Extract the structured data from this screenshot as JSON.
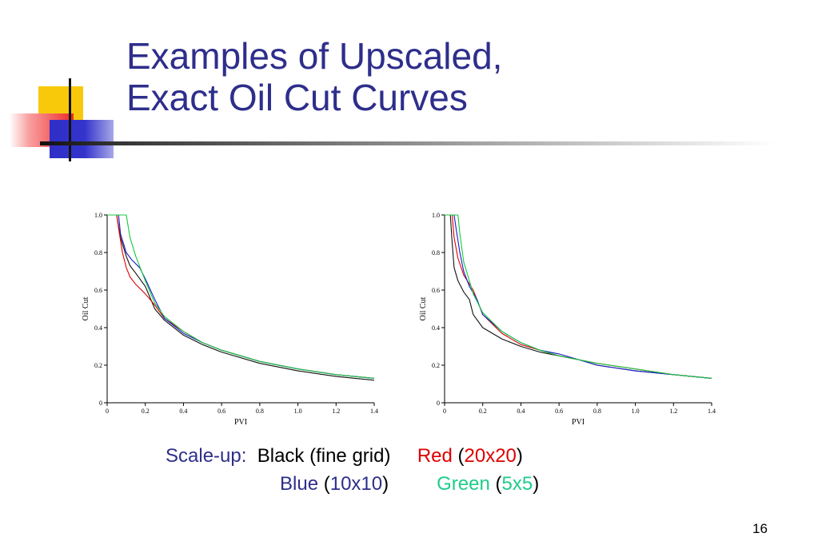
{
  "slide": {
    "title_line1": "Examples of Upscaled,",
    "title_line2": "Exact Oil Cut Curves",
    "page_number": "16"
  },
  "legend": {
    "prefix": "Scale-up:",
    "black_label": "Black (fine grid)",
    "red_label": "Red",
    "red_open": "(",
    "red_grid": "20x20",
    "red_close": ")",
    "blue_label": "Blue",
    "blue_open": "(",
    "blue_grid": "10x10",
    "blue_close": ")",
    "green_label": "Green",
    "green_open": "(",
    "green_grid": "5x5",
    "green_close": ")"
  },
  "colors": {
    "title": "#2e2e8c",
    "black_series": "#111111",
    "red_series": "#e00000",
    "blue_series": "#1a1acc",
    "green_series": "#16c840"
  },
  "chart_data": [
    {
      "type": "line",
      "xlabel": "PVI",
      "ylabel": "Oil Cut",
      "xlim": [
        0,
        1.4
      ],
      "ylim": [
        0,
        1.0
      ],
      "xticks": [
        "0",
        "0.2",
        "0.4",
        "0.6",
        "0.8",
        "1.0",
        "1.2",
        "1.4"
      ],
      "yticks": [
        "0",
        "0.2",
        "0.4",
        "0.6",
        "0.8",
        "1.0"
      ],
      "grid": false,
      "series": [
        {
          "color": "#111111",
          "x": [
            0,
            0.05,
            0.07,
            0.1,
            0.12,
            0.15,
            0.2,
            0.25,
            0.3,
            0.4,
            0.5,
            0.6,
            0.8,
            1.0,
            1.2,
            1.4
          ],
          "y": [
            1.0,
            1.0,
            0.88,
            0.78,
            0.73,
            0.69,
            0.62,
            0.5,
            0.44,
            0.36,
            0.31,
            0.27,
            0.21,
            0.17,
            0.14,
            0.12
          ]
        },
        {
          "color": "#e00000",
          "x": [
            0,
            0.05,
            0.06,
            0.08,
            0.1,
            0.12,
            0.15,
            0.2,
            0.25,
            0.3,
            0.4,
            0.5,
            0.6,
            0.8,
            1.0,
            1.2,
            1.4
          ],
          "y": [
            1.0,
            1.0,
            0.93,
            0.8,
            0.72,
            0.67,
            0.63,
            0.58,
            0.52,
            0.45,
            0.38,
            0.32,
            0.28,
            0.22,
            0.18,
            0.15,
            0.13
          ]
        },
        {
          "color": "#1a1acc",
          "x": [
            0,
            0.06,
            0.07,
            0.1,
            0.13,
            0.17,
            0.2,
            0.25,
            0.3,
            0.4,
            0.5,
            0.6,
            0.8,
            1.0,
            1.2,
            1.4
          ],
          "y": [
            1.0,
            1.0,
            0.9,
            0.8,
            0.76,
            0.72,
            0.66,
            0.55,
            0.45,
            0.37,
            0.32,
            0.28,
            0.22,
            0.18,
            0.15,
            0.13
          ]
        },
        {
          "color": "#16c840",
          "x": [
            0,
            0.1,
            0.12,
            0.15,
            0.2,
            0.25,
            0.3,
            0.4,
            0.5,
            0.6,
            0.8,
            1.0,
            1.2,
            1.4
          ],
          "y": [
            1.0,
            1.0,
            0.88,
            0.78,
            0.65,
            0.53,
            0.46,
            0.38,
            0.32,
            0.28,
            0.22,
            0.18,
            0.15,
            0.13
          ]
        }
      ]
    },
    {
      "type": "line",
      "xlabel": "PVI",
      "ylabel": "Oil Cut",
      "xlim": [
        0,
        1.4
      ],
      "ylim": [
        0,
        1.0
      ],
      "xticks": [
        "0",
        "0.2",
        "0.4",
        "0.6",
        "0.8",
        "1.0",
        "1.2",
        "1.4"
      ],
      "yticks": [
        "0",
        "0.2",
        "0.4",
        "0.6",
        "0.8",
        "1.0"
      ],
      "grid": false,
      "series": [
        {
          "color": "#111111",
          "x": [
            0,
            0.03,
            0.04,
            0.05,
            0.07,
            0.1,
            0.13,
            0.15,
            0.2,
            0.3,
            0.4,
            0.5,
            0.6,
            0.7,
            0.8,
            1.0,
            1.2,
            1.4
          ],
          "y": [
            1.0,
            1.0,
            0.85,
            0.72,
            0.65,
            0.59,
            0.55,
            0.47,
            0.4,
            0.34,
            0.3,
            0.27,
            0.25,
            0.23,
            0.2,
            0.17,
            0.15,
            0.13
          ]
        },
        {
          "color": "#e00000",
          "x": [
            0,
            0.04,
            0.05,
            0.07,
            0.1,
            0.15,
            0.2,
            0.3,
            0.4,
            0.5,
            0.6,
            0.8,
            1.0,
            1.2,
            1.4
          ],
          "y": [
            1.0,
            1.0,
            0.88,
            0.77,
            0.68,
            0.6,
            0.47,
            0.37,
            0.31,
            0.28,
            0.25,
            0.21,
            0.18,
            0.15,
            0.13
          ]
        },
        {
          "color": "#1a1acc",
          "x": [
            0,
            0.05,
            0.06,
            0.08,
            0.1,
            0.13,
            0.17,
            0.2,
            0.3,
            0.4,
            0.5,
            0.6,
            0.7,
            0.8,
            1.0,
            1.2,
            1.4
          ],
          "y": [
            1.0,
            1.0,
            0.93,
            0.8,
            0.7,
            0.62,
            0.55,
            0.47,
            0.38,
            0.32,
            0.28,
            0.26,
            0.23,
            0.2,
            0.17,
            0.15,
            0.13
          ]
        },
        {
          "color": "#16c840",
          "x": [
            0,
            0.07,
            0.08,
            0.1,
            0.13,
            0.15,
            0.2,
            0.25,
            0.3,
            0.4,
            0.5,
            0.6,
            0.8,
            1.0,
            1.2,
            1.4
          ],
          "y": [
            1.0,
            1.0,
            0.9,
            0.75,
            0.65,
            0.58,
            0.48,
            0.43,
            0.38,
            0.32,
            0.28,
            0.25,
            0.21,
            0.18,
            0.15,
            0.13
          ]
        }
      ]
    }
  ]
}
